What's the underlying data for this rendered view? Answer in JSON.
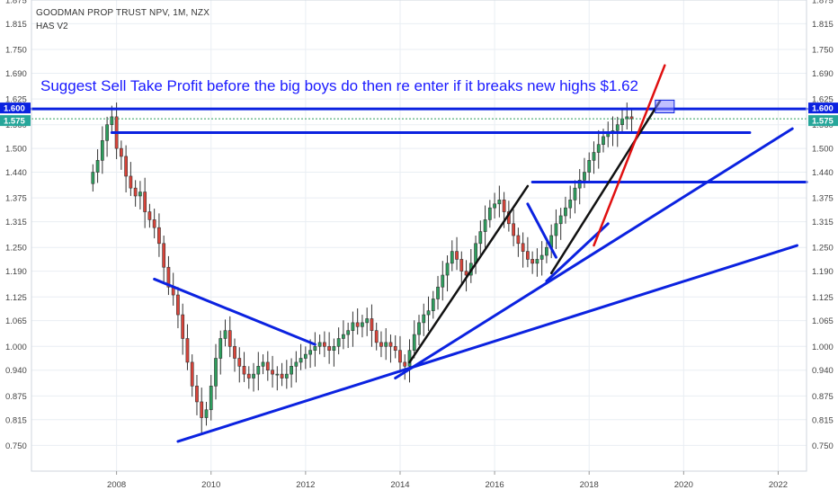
{
  "header": {
    "title": "GOODMAN PROP TRUST NPV, 1M, NZX",
    "indicator": "HAS V2"
  },
  "annotation": "Suggest Sell Take Profit before the big boys do then re enter if it breaks new highs $1.62",
  "price_badges": {
    "upper": "1.600",
    "lower": "1.575",
    "upper_color": "#0b22e0",
    "lower_color": "#26a69a"
  },
  "colors": {
    "line_blue": "#0b22e0",
    "line_black": "#111111",
    "line_red": "#e01010",
    "candle_up": "#2e9e5e",
    "candle_down": "#d9443a",
    "grid": "#e9eef3",
    "box_fill": "#8a8aff"
  },
  "chart_data": {
    "type": "candlestick",
    "x_axis": {
      "range": [
        2006.2,
        2022.6
      ],
      "ticks": [
        "2008",
        "2010",
        "2012",
        "2014",
        "2016",
        "2018",
        "2020",
        "2022"
      ]
    },
    "y_axis": {
      "range": [
        0.685,
        1.875
      ],
      "ticks": [
        "1.875",
        "1.815",
        "1.750",
        "1.690",
        "1.625",
        "1.560",
        "1.500",
        "1.440",
        "1.375",
        "1.315",
        "1.250",
        "1.190",
        "1.125",
        "1.065",
        "1.000",
        "0.940",
        "0.875",
        "0.815",
        "0.750"
      ]
    },
    "grid": true,
    "closes": [
      [
        2007.5,
        1.44
      ],
      [
        2007.6,
        1.47
      ],
      [
        2007.7,
        1.52
      ],
      [
        2007.8,
        1.56
      ],
      [
        2007.9,
        1.58
      ],
      [
        2008.0,
        1.5
      ],
      [
        2008.1,
        1.48
      ],
      [
        2008.2,
        1.43
      ],
      [
        2008.3,
        1.4
      ],
      [
        2008.4,
        1.38
      ],
      [
        2008.5,
        1.39
      ],
      [
        2008.6,
        1.34
      ],
      [
        2008.7,
        1.32
      ],
      [
        2008.8,
        1.3
      ],
      [
        2008.9,
        1.26
      ],
      [
        2009.0,
        1.2
      ],
      [
        2009.1,
        1.15
      ],
      [
        2009.2,
        1.13
      ],
      [
        2009.3,
        1.08
      ],
      [
        2009.4,
        1.02
      ],
      [
        2009.5,
        0.96
      ],
      [
        2009.6,
        0.9
      ],
      [
        2009.7,
        0.86
      ],
      [
        2009.8,
        0.82
      ],
      [
        2009.9,
        0.84
      ],
      [
        2010.0,
        0.9
      ],
      [
        2010.1,
        0.97
      ],
      [
        2010.2,
        1.02
      ],
      [
        2010.3,
        1.04
      ],
      [
        2010.4,
        1.0
      ],
      [
        2010.5,
        0.97
      ],
      [
        2010.6,
        0.95
      ],
      [
        2010.7,
        0.93
      ],
      [
        2010.8,
        0.92
      ],
      [
        2010.9,
        0.93
      ],
      [
        2011.0,
        0.95
      ],
      [
        2011.1,
        0.96
      ],
      [
        2011.2,
        0.94
      ],
      [
        2011.3,
        0.93
      ],
      [
        2011.4,
        0.93
      ],
      [
        2011.5,
        0.92
      ],
      [
        2011.6,
        0.93
      ],
      [
        2011.7,
        0.95
      ],
      [
        2011.8,
        0.96
      ],
      [
        2011.9,
        0.97
      ],
      [
        2012.0,
        0.98
      ],
      [
        2012.1,
        0.99
      ],
      [
        2012.2,
        1.0
      ],
      [
        2012.3,
        1.01
      ],
      [
        2012.4,
        1.0
      ],
      [
        2012.5,
        0.99
      ],
      [
        2012.6,
        1.0
      ],
      [
        2012.7,
        1.02
      ],
      [
        2012.8,
        1.03
      ],
      [
        2012.9,
        1.04
      ],
      [
        2013.0,
        1.06
      ],
      [
        2013.1,
        1.05
      ],
      [
        2013.2,
        1.06
      ],
      [
        2013.3,
        1.07
      ],
      [
        2013.4,
        1.04
      ],
      [
        2013.5,
        1.01
      ],
      [
        2013.6,
        1.0
      ],
      [
        2013.7,
        1.01
      ],
      [
        2013.8,
        1.0
      ],
      [
        2013.9,
        0.99
      ],
      [
        2014.0,
        0.96
      ],
      [
        2014.1,
        0.95
      ],
      [
        2014.2,
        0.99
      ],
      [
        2014.3,
        1.03
      ],
      [
        2014.4,
        1.06
      ],
      [
        2014.5,
        1.08
      ],
      [
        2014.6,
        1.09
      ],
      [
        2014.7,
        1.12
      ],
      [
        2014.8,
        1.15
      ],
      [
        2014.9,
        1.18
      ],
      [
        2015.0,
        1.21
      ],
      [
        2015.1,
        1.24
      ],
      [
        2015.2,
        1.22
      ],
      [
        2015.3,
        1.19
      ],
      [
        2015.4,
        1.18
      ],
      [
        2015.5,
        1.21
      ],
      [
        2015.6,
        1.26
      ],
      [
        2015.7,
        1.29
      ],
      [
        2015.8,
        1.32
      ],
      [
        2015.9,
        1.35
      ],
      [
        2016.0,
        1.36
      ],
      [
        2016.1,
        1.37
      ],
      [
        2016.2,
        1.34
      ],
      [
        2016.3,
        1.31
      ],
      [
        2016.4,
        1.28
      ],
      [
        2016.5,
        1.26
      ],
      [
        2016.6,
        1.24
      ],
      [
        2016.7,
        1.22
      ],
      [
        2016.8,
        1.21
      ],
      [
        2016.9,
        1.22
      ],
      [
        2017.0,
        1.23
      ],
      [
        2017.1,
        1.25
      ],
      [
        2017.2,
        1.28
      ],
      [
        2017.3,
        1.31
      ],
      [
        2017.4,
        1.33
      ],
      [
        2017.5,
        1.35
      ],
      [
        2017.6,
        1.37
      ],
      [
        2017.7,
        1.4
      ],
      [
        2017.8,
        1.42
      ],
      [
        2017.9,
        1.44
      ],
      [
        2018.0,
        1.47
      ],
      [
        2018.1,
        1.49
      ],
      [
        2018.2,
        1.51
      ],
      [
        2018.3,
        1.53
      ],
      [
        2018.4,
        1.54
      ],
      [
        2018.5,
        1.545
      ],
      [
        2018.6,
        1.56
      ],
      [
        2018.7,
        1.575
      ],
      [
        2018.8,
        1.58
      ],
      [
        2018.9,
        1.575
      ]
    ],
    "lines": [
      {
        "color": "blue",
        "x": [
          2007.9,
          2021.4
        ],
        "y": [
          1.54,
          1.54
        ]
      },
      {
        "color": "blue",
        "x": [
          2006.2,
          2022.6
        ],
        "y": [
          1.6,
          1.6
        ]
      },
      {
        "color": "blue",
        "x": [
          2016.8,
          2022.6
        ],
        "y": [
          1.415,
          1.415
        ]
      },
      {
        "color": "blue",
        "x": [
          2008.8,
          2012.2
        ],
        "y": [
          1.17,
          1.005
        ]
      },
      {
        "color": "blue",
        "x": [
          2009.3,
          2022.4
        ],
        "y": [
          0.76,
          1.255
        ]
      },
      {
        "color": "blue",
        "x": [
          2013.9,
          2022.3
        ],
        "y": [
          0.92,
          1.55
        ]
      },
      {
        "color": "blue",
        "x": [
          2017.1,
          2018.4
        ],
        "y": [
          1.165,
          1.31
        ]
      },
      {
        "color": "blue",
        "x": [
          2016.7,
          2017.3
        ],
        "y": [
          1.36,
          1.225
        ]
      },
      {
        "color": "black",
        "x": [
          2014.2,
          2016.7
        ],
        "y": [
          0.96,
          1.405
        ]
      },
      {
        "color": "black",
        "x": [
          2017.2,
          2019.5
        ],
        "y": [
          1.185,
          1.62
        ]
      },
      {
        "color": "red",
        "x": [
          2018.1,
          2019.6
        ],
        "y": [
          1.255,
          1.71
        ]
      }
    ],
    "highlight_box": {
      "x": [
        2019.4,
        2019.8
      ],
      "y": [
        1.59,
        1.622
      ]
    }
  }
}
